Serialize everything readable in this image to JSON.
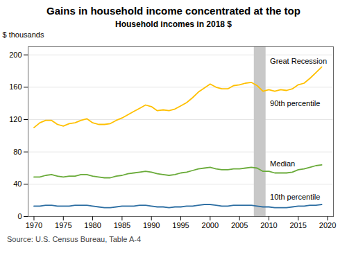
{
  "chart_data": {
    "type": "line",
    "title": "Gains in household income concentrated at the top",
    "subtitle": "Household incomes in 2018 $",
    "ylabel": "$ thousands",
    "caption": "Source: U.S. Census Bureau, Table A-4",
    "x": [
      1970,
      1971,
      1972,
      1973,
      1974,
      1975,
      1976,
      1977,
      1978,
      1979,
      1980,
      1981,
      1982,
      1983,
      1984,
      1985,
      1986,
      1987,
      1988,
      1989,
      1990,
      1991,
      1992,
      1993,
      1994,
      1995,
      1996,
      1997,
      1998,
      1999,
      2000,
      2001,
      2002,
      2003,
      2004,
      2005,
      2006,
      2007,
      2008,
      2009,
      2010,
      2011,
      2012,
      2013,
      2014,
      2015,
      2016,
      2017,
      2018,
      2019
    ],
    "series": [
      {
        "color": "#FFC000",
        "values": [
          110,
          116,
          119,
          119,
          114,
          112,
          115,
          116,
          119,
          121,
          116,
          114,
          114,
          115,
          119,
          122,
          126,
          130,
          134,
          138,
          136,
          131,
          132,
          131,
          133,
          137,
          141,
          147,
          154,
          159,
          164,
          160,
          158,
          158,
          162,
          163,
          165,
          166,
          162,
          155,
          157,
          155,
          157,
          156,
          158,
          163,
          165,
          171,
          178,
          185
        ]
      },
      {
        "color": "#6AAB3A",
        "values": [
          49,
          49,
          51,
          52,
          50,
          49,
          50,
          50,
          52,
          52,
          50,
          49,
          48,
          48,
          50,
          51,
          53,
          54,
          55,
          56,
          55,
          53,
          52,
          51,
          52,
          54,
          55,
          57,
          59,
          60,
          61,
          59,
          58,
          58,
          59,
          59,
          60,
          61,
          60,
          56,
          56,
          54,
          54,
          54,
          55,
          58,
          59,
          61,
          63,
          64
        ]
      },
      {
        "color": "#2E6FA3",
        "values": [
          13,
          13,
          14,
          14,
          13,
          13,
          13,
          14,
          14,
          14,
          13,
          12,
          11,
          11,
          12,
          13,
          13,
          13,
          14,
          14,
          13,
          12,
          12,
          11,
          12,
          12,
          13,
          13,
          14,
          15,
          15,
          14,
          13,
          13,
          14,
          14,
          14,
          14,
          13,
          12,
          12,
          11,
          11,
          11,
          12,
          13,
          13,
          14,
          14,
          15
        ]
      }
    ],
    "shaded_band": {
      "x": [
        2007.5,
        2009.5
      ],
      "color": "#C8C8C8"
    },
    "annotations": [
      {
        "text": "Great Recession",
        "x": 2010.2,
        "y": 192
      },
      {
        "text": "90th percentile",
        "x": 2010.2,
        "y": 140
      },
      {
        "text": "Median",
        "x": 2010.2,
        "y": 65
      },
      {
        "text": "10th percentile",
        "x": 2010.2,
        "y": 24
      }
    ],
    "xlim": [
      1969,
      2021
    ],
    "ylim": [
      0,
      210
    ],
    "xticks": [
      1970,
      1975,
      1980,
      1985,
      1990,
      1995,
      2000,
      2005,
      2010,
      2015,
      2020
    ],
    "yticks": [
      0,
      40,
      80,
      120,
      160,
      200
    ],
    "grid": true
  }
}
